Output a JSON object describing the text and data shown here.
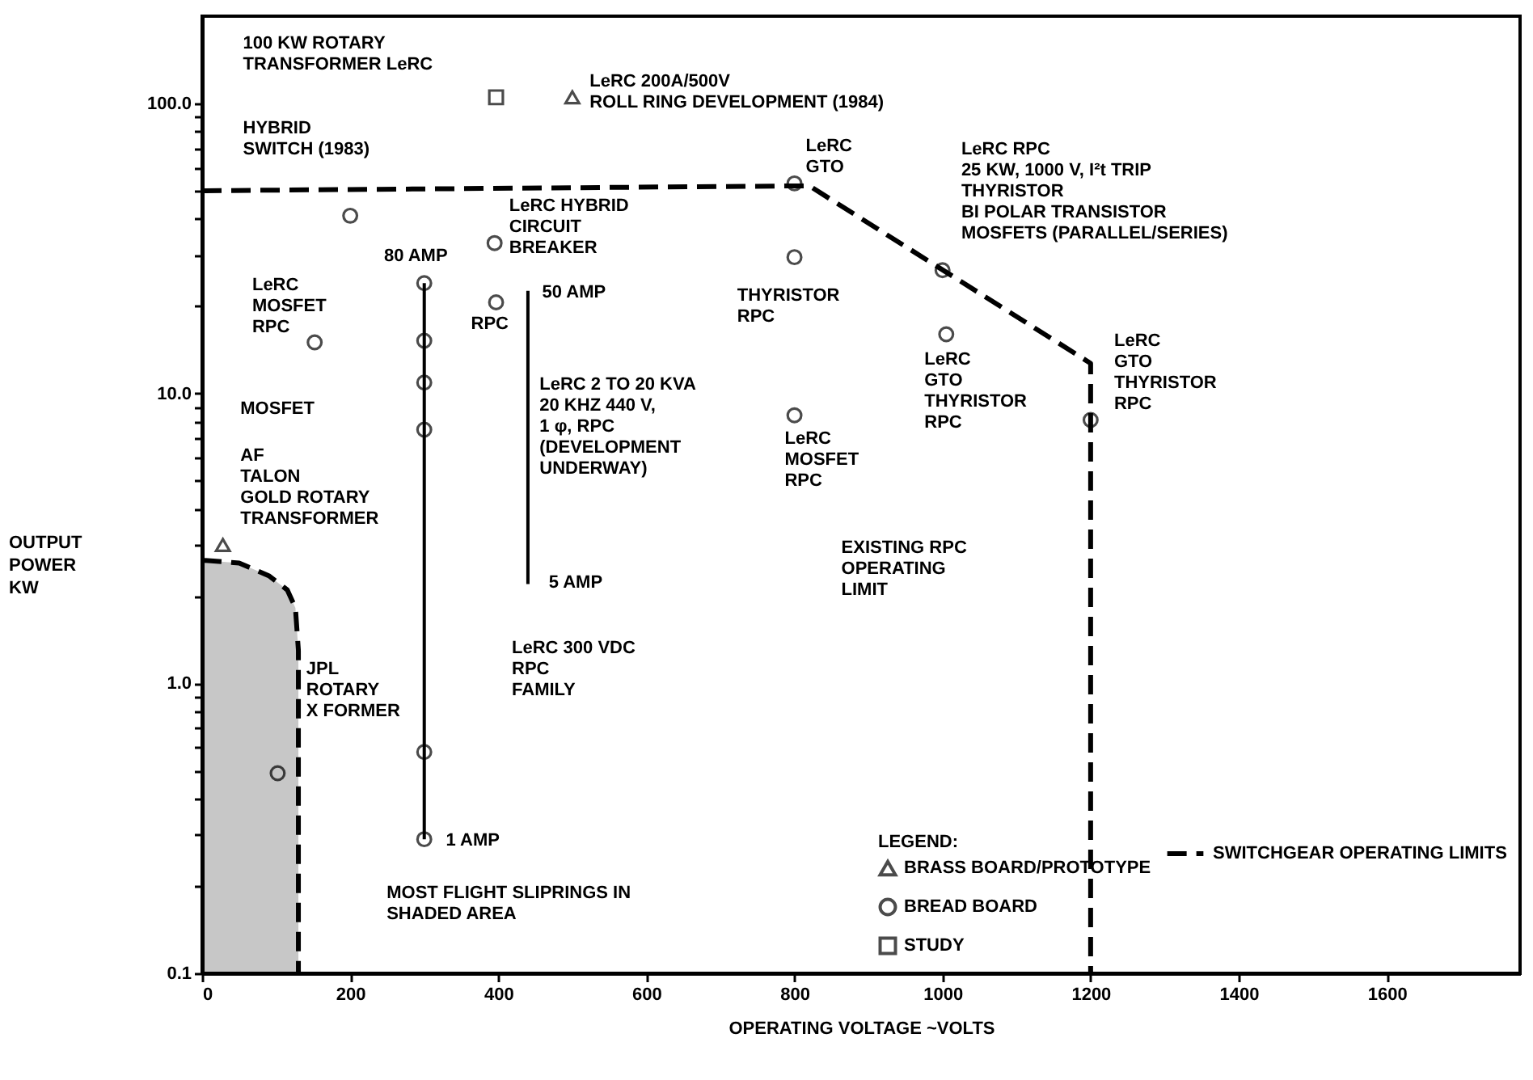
{
  "chart_data": {
    "type": "scatter",
    "xlabel": "OPERATING VOLTAGE ~VOLTS",
    "ylabel": "OUTPUT\nPOWER\nKW",
    "legend_title": "LEGEND:",
    "xlim": [
      0,
      1780
    ],
    "ylim": [
      0.1,
      200
    ],
    "log": "y",
    "grid": false,
    "legend": "bottom right",
    "xticks": [
      0,
      200,
      400,
      600,
      800,
      1000,
      1200,
      1400,
      1600
    ],
    "yticks": [
      {
        "value": 0.1,
        "label": "0.1"
      },
      {
        "value": 0.2,
        "label": null
      },
      {
        "value": 0.3,
        "label": null
      },
      {
        "value": 0.4,
        "label": null
      },
      {
        "value": 0.5,
        "label": null
      },
      {
        "value": 0.6,
        "label": null
      },
      {
        "value": 0.7,
        "label": null
      },
      {
        "value": 0.8,
        "label": null
      },
      {
        "value": 0.9,
        "label": null
      },
      {
        "value": 1,
        "label": "1.0"
      },
      {
        "value": 2,
        "label": null
      },
      {
        "value": 3,
        "label": null
      },
      {
        "value": 4,
        "label": null
      },
      {
        "value": 5,
        "label": null
      },
      {
        "value": 6,
        "label": null
      },
      {
        "value": 7,
        "label": null
      },
      {
        "value": 8,
        "label": null
      },
      {
        "value": 9,
        "label": null
      },
      {
        "value": 10,
        "label": "10.0"
      },
      {
        "value": 20,
        "label": null
      },
      {
        "value": 30,
        "label": null
      },
      {
        "value": 40,
        "label": null
      },
      {
        "value": 50,
        "label": null
      },
      {
        "value": 60,
        "label": null
      },
      {
        "value": 70,
        "label": null
      },
      {
        "value": 80,
        "label": null
      },
      {
        "value": 90,
        "label": null
      },
      {
        "value": 100,
        "label": "100.0"
      }
    ],
    "series": [
      {
        "name": "BRASS BOARD/PROTOTYPE",
        "marker": "triangle",
        "color": "#000000",
        "x": [
          500,
          28
        ],
        "values": [
          105,
          3.0
        ]
      },
      {
        "name": "BREAD BOARD",
        "marker": "circle",
        "color": "#000000",
        "x": [
          200,
          395,
          397,
          152,
          300,
          300,
          300,
          300,
          300,
          300,
          102,
          800,
          800,
          800,
          1000,
          1005,
          1200
        ],
        "values": [
          41,
          33,
          20.6,
          15,
          24,
          15.2,
          10.9,
          7.5,
          0.58,
          0.29,
          0.49,
          53,
          29.5,
          8.4,
          26.6,
          16,
          8.1
        ]
      },
      {
        "name": "STUDY",
        "marker": "square",
        "color": "#000000",
        "x": [
          397
        ],
        "values": [
          105
        ]
      },
      {
        "name": "SWITCHGEAR OPERATING LIMITS",
        "type": "line",
        "line_style": "dashed",
        "color": "#000000",
        "x": [
          0,
          820,
          1200,
          1200
        ],
        "values": [
          50,
          52,
          12.7,
          0.1
        ]
      },
      {
        "type": "line",
        "line_style": "solid",
        "color": "#000000",
        "x": [
          300,
          300
        ],
        "values": [
          24,
          0.29
        ]
      },
      {
        "type": "line",
        "line_style": "solid",
        "color": "#000000",
        "x": [
          440,
          440
        ],
        "values": [
          22.6,
          2.2
        ]
      },
      {
        "type": "area",
        "line_style": "dashed",
        "color": "#000000",
        "x": [
          0,
          50,
          90,
          115,
          126,
          130,
          130
        ],
        "values": [
          2.66,
          2.6,
          2.35,
          2.1,
          1.82,
          1.3,
          0.1
        ]
      }
    ],
    "annotations": [
      "100 KW ROTARY\nTRANSFORMER LeRC",
      "LeRC 200A/500V\nROLL RING DEVELOPMENT (1984)",
      "HYBRID\nSWITCH (1983)",
      "LeRC HYBRID\nCIRCUIT\nBREAKER",
      "80 AMP",
      "LeRC\nMOSFET\nRPC",
      "RPC",
      "50 AMP",
      "MOSFET",
      "LeRC 2 TO 20 KVA\n20 KHZ 440 V,\n1 φ, RPC\n(DEVELOPMENT\nUNDERWAY)",
      "AF\nTALON\nGOLD ROTARY\n  TRANSFORMER",
      "5 AMP",
      "LeRC 300 VDC\nRPC\nFAMILY",
      "JPL\nROTARY\nX FORMER",
      "1 AMP",
      "MOST FLIGHT SLIPRINGS IN\nSHADED AREA",
      "LeRC\nGTO",
      "LeRC RPC\n25 KW, 1000 V, I²t TRIP\nTHYRISTOR\nBI POLAR TRANSISTOR\nMOSFETS (PARALLEL/SERIES)",
      "THYRISTOR\nRPC",
      "LeRC\nGTO\nTHYRISTOR\nRPC",
      "LeRC\nMOSFET\nRPC",
      "LeRC\nGTO\nTHYRISTOR\nRPC",
      "EXISTING RPC\nOPERATING\nLIMIT"
    ]
  }
}
